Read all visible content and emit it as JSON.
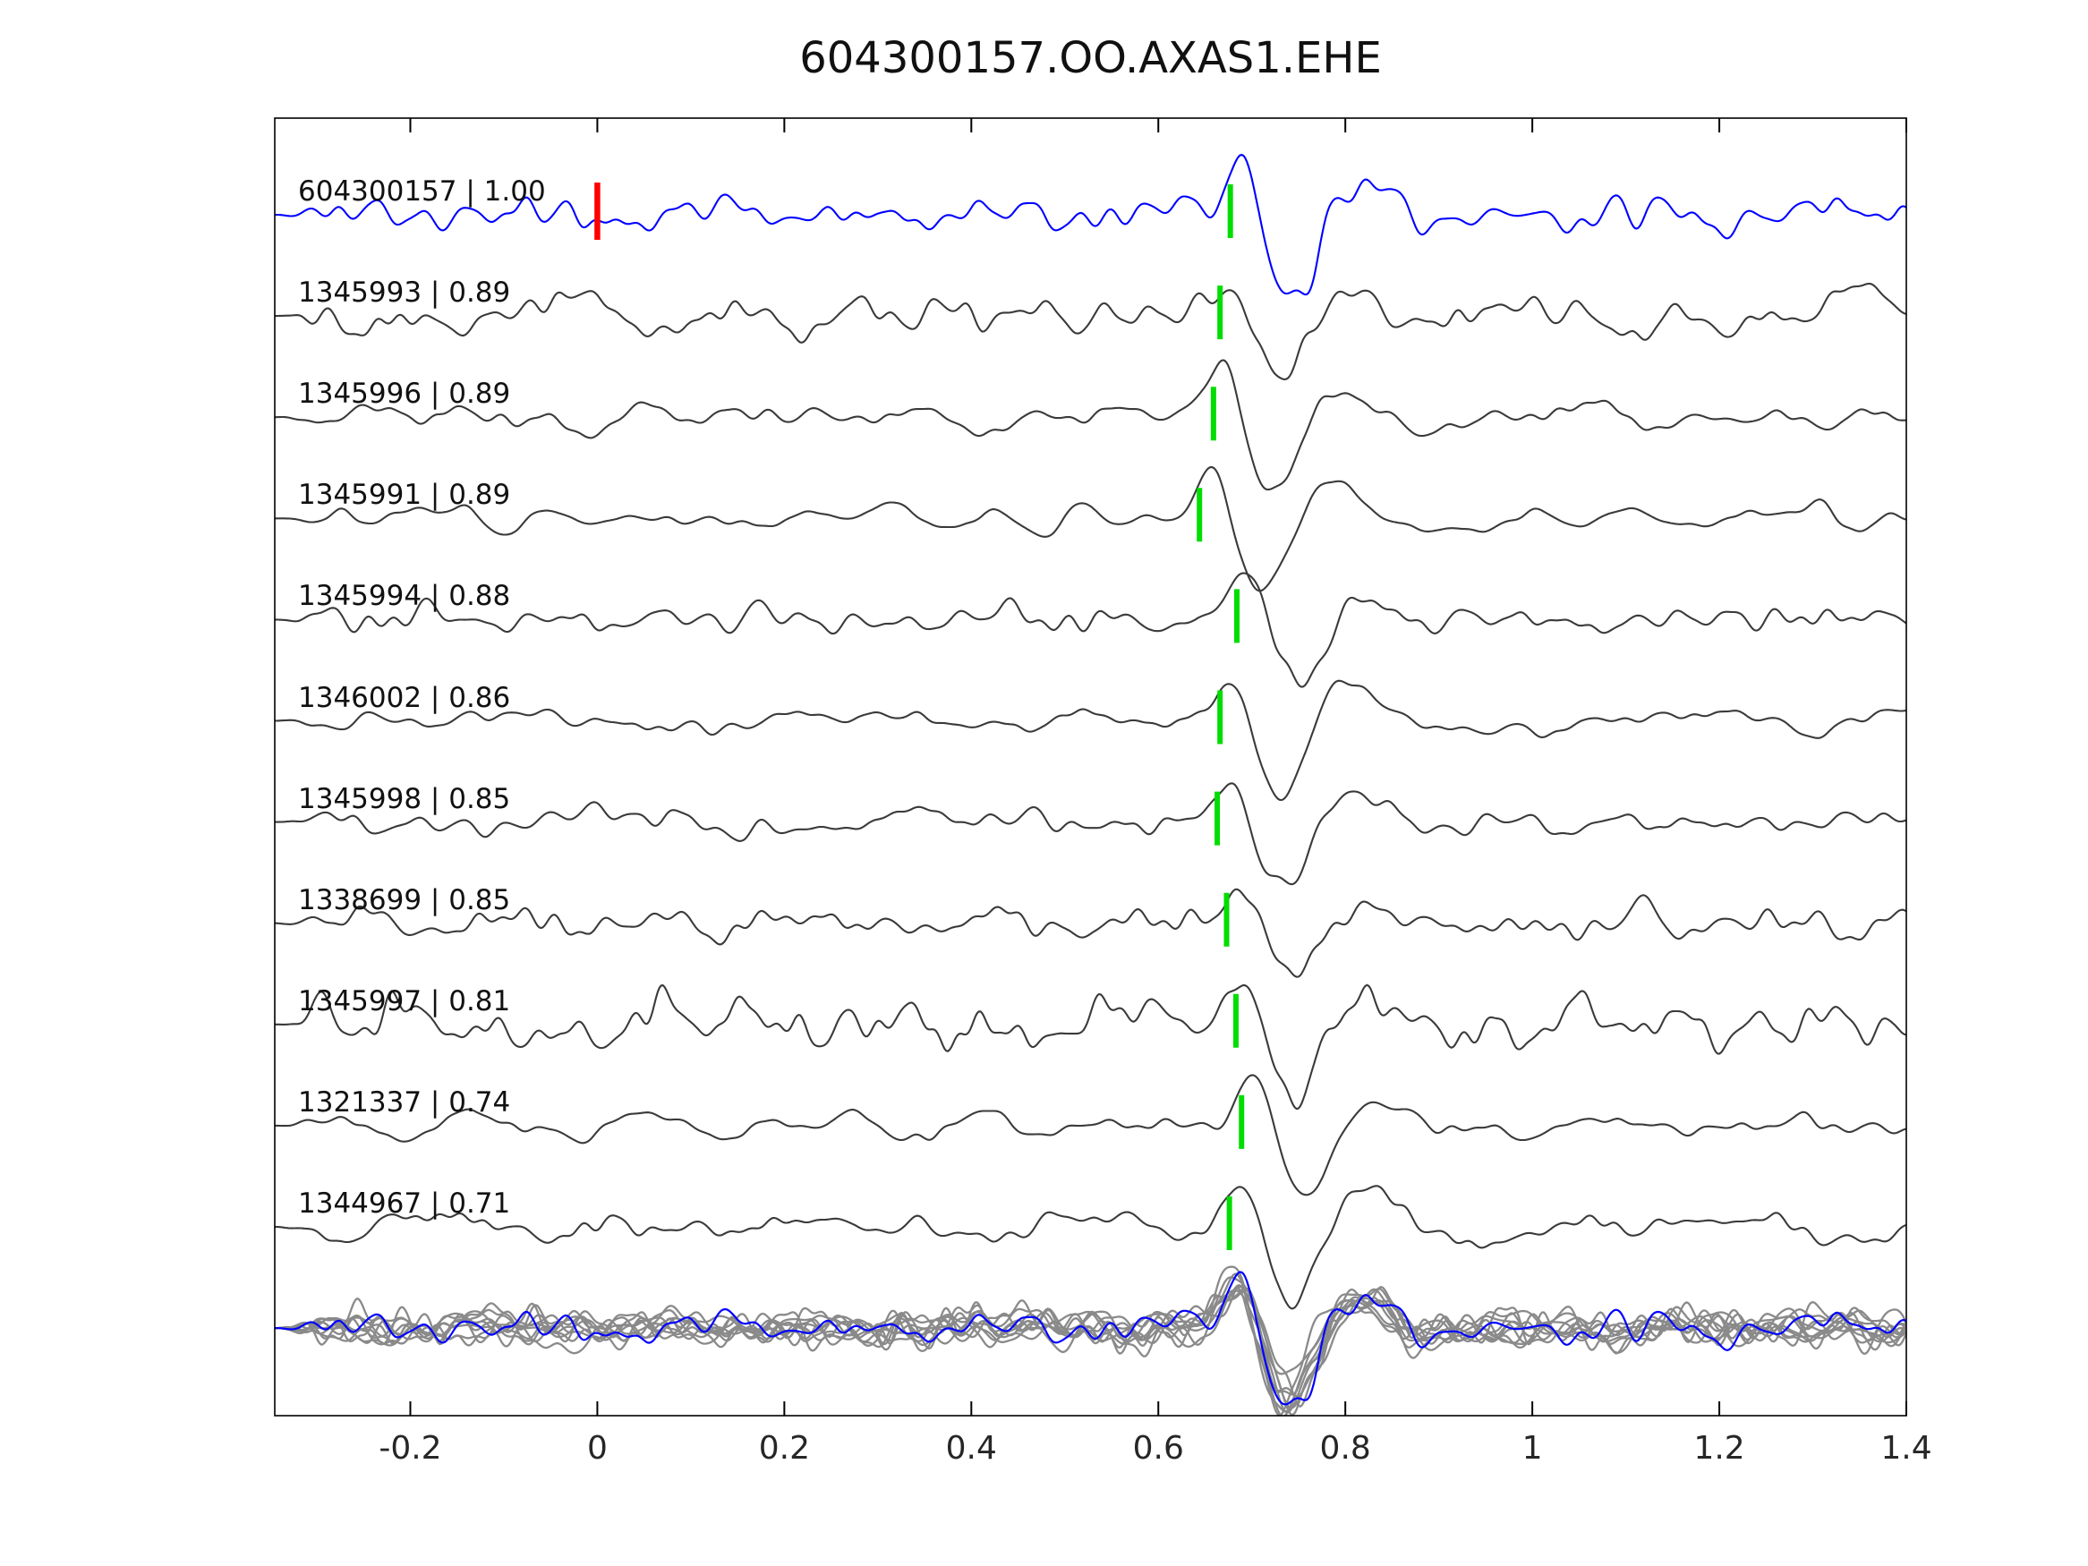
{
  "title": "604300157.OO.AXAS1.EHE",
  "colors": {
    "background": "#ffffff",
    "template_trace": "#0000ff",
    "detection_trace": "#3a3a3a",
    "stack_trace": "#8a8a8a",
    "pick_marker": "#00dd00",
    "origin_marker": "#ff0000",
    "axis": "#000000",
    "tick_label": "#262626",
    "label_text": "#111111"
  },
  "chart_data": {
    "type": "line",
    "title": "604300157.OO.AXAS1.EHE",
    "subtitle": "",
    "xlabel": "",
    "ylabel": "",
    "xlim": [
      -0.345,
      1.4
    ],
    "x_tick_values": [
      -0.2,
      0,
      0.2,
      0.4,
      0.6,
      0.8,
      1.0,
      1.2,
      1.4
    ],
    "x_tick_labels": [
      "-0.2",
      "0",
      "0.2",
      "0.4",
      "0.6",
      "0.8",
      "1",
      "1.2",
      "1.4"
    ],
    "grid": false,
    "legend": false,
    "description": "Stacked seismic waveform correlation plot: blue template trace on top, ten gray detected-event traces below (each labeled 'id | correlation' with a green pick marker near t=0.66-0.69, red origin marker at t=0 on the template), and an overlay stack of all aligned gray traces with the blue template at the bottom.",
    "traces": [
      {
        "id": "604300157",
        "correlation": 1.0,
        "label": "604300157 | 1.00",
        "role": "template",
        "pick_time": 0.677,
        "origin_marker_time": 0.0
      },
      {
        "id": "1345993",
        "correlation": 0.89,
        "label": "1345993 | 0.89",
        "role": "detection",
        "pick_time": 0.666
      },
      {
        "id": "1345996",
        "correlation": 0.89,
        "label": "1345996 | 0.89",
        "role": "detection",
        "pick_time": 0.659
      },
      {
        "id": "1345991",
        "correlation": 0.89,
        "label": "1345991 | 0.89",
        "role": "detection",
        "pick_time": 0.644
      },
      {
        "id": "1345994",
        "correlation": 0.88,
        "label": "1345994 | 0.88",
        "role": "detection",
        "pick_time": 0.684
      },
      {
        "id": "1346002",
        "correlation": 0.86,
        "label": "1346002 | 0.86",
        "role": "detection",
        "pick_time": 0.666
      },
      {
        "id": "1345998",
        "correlation": 0.85,
        "label": "1345998 | 0.85",
        "role": "detection",
        "pick_time": 0.663
      },
      {
        "id": "1338699",
        "correlation": 0.85,
        "label": "1338699 | 0.85",
        "role": "detection",
        "pick_time": 0.673
      },
      {
        "id": "1345997",
        "correlation": 0.81,
        "label": "1345997 | 0.81",
        "role": "detection",
        "pick_time": 0.683
      },
      {
        "id": "1321337",
        "correlation": 0.74,
        "label": "1321337 | 0.74",
        "role": "detection",
        "pick_time": 0.689
      },
      {
        "id": "1344967",
        "correlation": 0.71,
        "label": "1344967 | 0.71",
        "role": "detection",
        "pick_time": 0.676
      }
    ],
    "stack": {
      "description": "Overlaid aligned detection waveforms (gray) with template waveform (blue)",
      "n_gray_traces": 10,
      "alignment_time": 0.675
    }
  }
}
